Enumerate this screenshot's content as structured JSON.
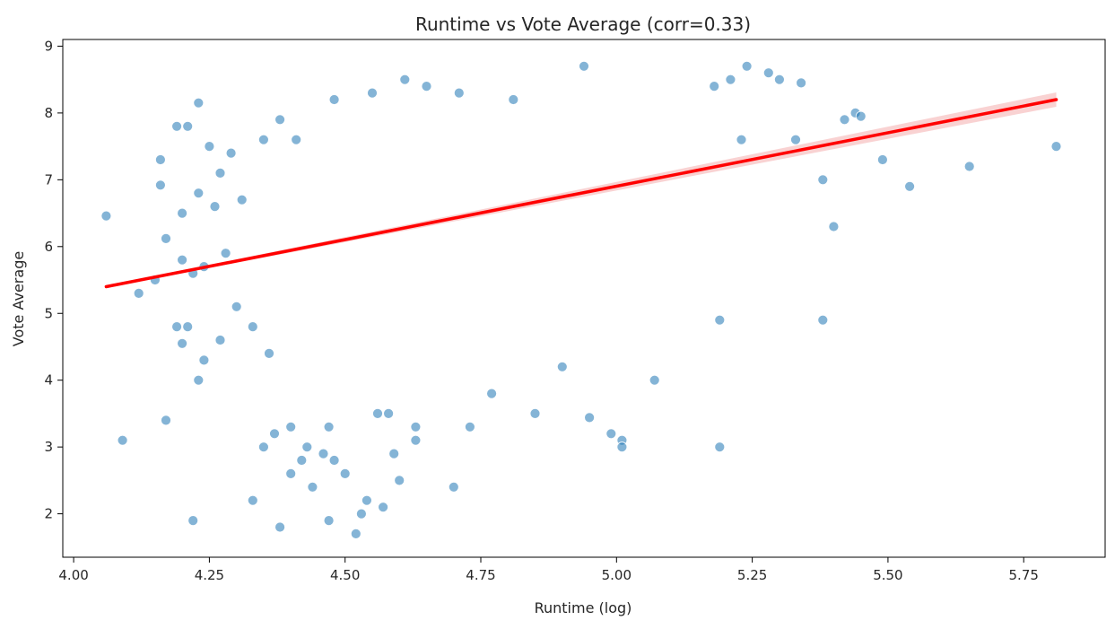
{
  "chart_data": {
    "type": "scatter",
    "title": "Runtime vs Vote Average (corr=0.33)",
    "xlabel": "Runtime (log)",
    "ylabel": "Vote Average",
    "xlim": [
      3.98,
      5.9
    ],
    "ylim": [
      1.35,
      9.1
    ],
    "x_ticks": [
      "4.00",
      "4.25",
      "4.50",
      "4.75",
      "5.00",
      "5.25",
      "5.50",
      "5.75"
    ],
    "y_ticks": [
      "2",
      "3",
      "4",
      "5",
      "6",
      "7",
      "8",
      "9"
    ],
    "grid": false,
    "legend": "none",
    "colors": {
      "points": "#1f77b4",
      "fit_line": "#ff0000",
      "ci_band": "#f4a6a6"
    },
    "series": [
      {
        "kind": "points",
        "x": [
          4.06,
          4.09,
          4.12,
          4.15,
          4.16,
          4.16,
          4.17,
          4.17,
          4.19,
          4.19,
          4.2,
          4.2,
          4.2,
          4.21,
          4.21,
          4.22,
          4.22,
          4.23,
          4.23,
          4.23,
          4.24,
          4.24,
          4.25,
          4.26,
          4.27,
          4.27,
          4.28,
          4.29,
          4.3,
          4.31,
          4.33,
          4.33,
          4.35,
          4.35,
          4.36,
          4.37,
          4.38,
          4.38,
          4.4,
          4.4,
          4.41,
          4.42,
          4.43,
          4.44,
          4.46,
          4.47,
          4.47,
          4.48,
          4.48,
          4.5,
          4.52,
          4.53,
          4.54,
          4.55,
          4.56,
          4.57,
          4.58,
          4.59,
          4.6,
          4.61,
          4.63,
          4.63,
          4.65,
          4.7,
          4.71,
          4.73,
          4.77,
          4.81,
          4.85,
          4.9,
          4.94,
          4.95,
          4.99,
          5.01,
          5.01,
          5.07,
          5.18,
          5.19,
          5.19,
          5.21,
          5.23,
          5.24,
          5.28,
          5.3,
          5.33,
          5.34,
          5.38,
          5.38,
          5.4,
          5.42,
          5.44,
          5.45,
          5.49,
          5.54,
          5.65,
          5.81
        ],
        "y": [
          6.46,
          3.1,
          5.3,
          5.5,
          7.3,
          6.92,
          3.4,
          6.12,
          7.8,
          4.8,
          5.8,
          4.55,
          6.5,
          7.8,
          4.8,
          1.9,
          5.6,
          8.15,
          6.8,
          4.0,
          5.7,
          4.3,
          7.5,
          6.6,
          4.6,
          7.1,
          5.9,
          7.4,
          5.1,
          6.7,
          4.8,
          2.2,
          3.0,
          7.6,
          4.4,
          3.2,
          1.8,
          7.9,
          2.6,
          3.3,
          7.6,
          2.8,
          3.0,
          2.4,
          2.9,
          3.3,
          1.9,
          2.8,
          8.2,
          2.6,
          1.7,
          2.0,
          2.2,
          8.3,
          3.5,
          2.1,
          3.5,
          2.9,
          2.5,
          8.5,
          3.3,
          3.1,
          8.4,
          2.4,
          8.3,
          3.3,
          3.8,
          8.2,
          3.5,
          4.2,
          8.7,
          3.44,
          3.2,
          3.1,
          3.0,
          4.0,
          8.4,
          4.9,
          3.0,
          8.5,
          7.6,
          8.7,
          8.6,
          8.5,
          7.6,
          8.45,
          7.0,
          4.9,
          6.3,
          7.9,
          8.0,
          7.95,
          7.3,
          6.9,
          7.2,
          7.5
        ]
      },
      {
        "kind": "regression",
        "x": [
          4.06,
          5.81
        ],
        "y": [
          5.4,
          8.2
        ]
      }
    ]
  }
}
